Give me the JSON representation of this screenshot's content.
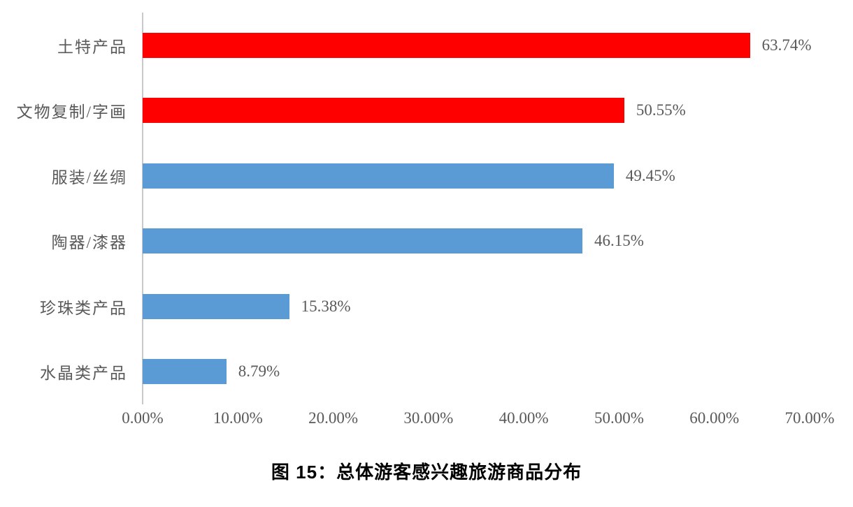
{
  "chart_data": {
    "type": "bar",
    "orientation": "horizontal",
    "title": "图 15：总体游客感兴趣旅游商品分布",
    "xlabel": "",
    "ylabel": "",
    "categories": [
      "土特产品",
      "文物复制/字画",
      "服装/丝绸",
      "陶器/漆器",
      "珍珠类产品",
      "水晶类产品"
    ],
    "values": [
      63.74,
      50.55,
      49.45,
      46.15,
      15.38,
      8.79
    ],
    "value_labels": [
      "63.74%",
      "50.55%",
      "49.45%",
      "46.15%",
      "15.38%",
      "8.79%"
    ],
    "bar_colors": [
      "#ff0000",
      "#ff0000",
      "#5b9bd5",
      "#5b9bd5",
      "#5b9bd5",
      "#5b9bd5"
    ],
    "xlim": [
      0,
      70
    ],
    "x_ticks": [
      "0.00%",
      "10.00%",
      "20.00%",
      "30.00%",
      "40.00%",
      "50.00%",
      "60.00%",
      "70.00%"
    ],
    "x_tick_values": [
      0,
      10,
      20,
      30,
      40,
      50,
      60,
      70
    ],
    "grid": false,
    "legend_position": "none",
    "colors": {
      "highlight_bar": "#ff0000",
      "default_bar": "#5b9bd5",
      "axis_line": "#c9c9c9",
      "label_text": "#595959",
      "caption_text": "#000000"
    }
  }
}
